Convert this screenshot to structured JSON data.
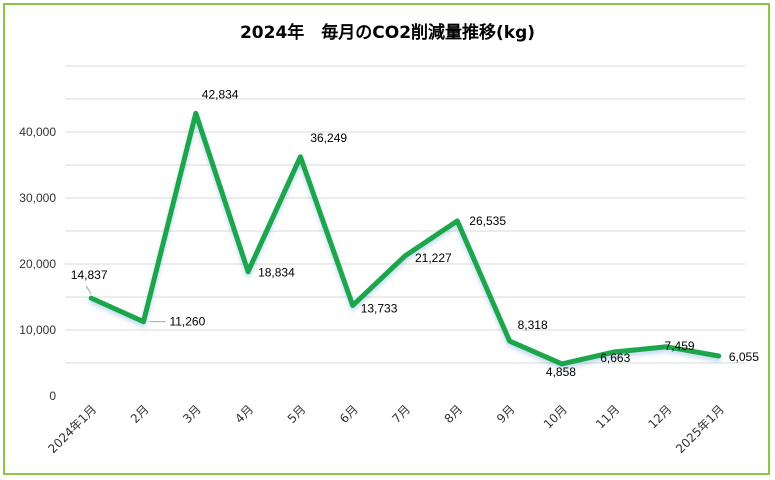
{
  "chart_data": {
    "type": "line",
    "title": "2024年　毎月のCO2削減量推移(kg)",
    "categories": [
      "2024年1月",
      "2月",
      "3月",
      "4月",
      "5月",
      "6月",
      "7月",
      "8月",
      "9月",
      "10月",
      "11月",
      "12月",
      "2025年1月"
    ],
    "series": [
      {
        "values": [
          14837,
          11260,
          42834,
          18834,
          36249,
          13733,
          21227,
          26535,
          8318,
          4858,
          6663,
          7459,
          6055
        ]
      }
    ],
    "data_labels": [
      "14,837",
      "11,260",
      "42,834",
      "18,834",
      "36,249",
      "13,733",
      "21,227",
      "26,535",
      "8,318",
      "4,858",
      "6,663",
      "7,459",
      "6,055"
    ],
    "y_ticks": [
      "0",
      "10,000",
      "20,000",
      "30,000",
      "40,000"
    ],
    "ylim": [
      0,
      50000
    ],
    "grid": true,
    "legend": "none",
    "colors": {
      "line": "#1aa64a",
      "grid": "#d9d9d9",
      "border": "#8cc63f"
    }
  }
}
